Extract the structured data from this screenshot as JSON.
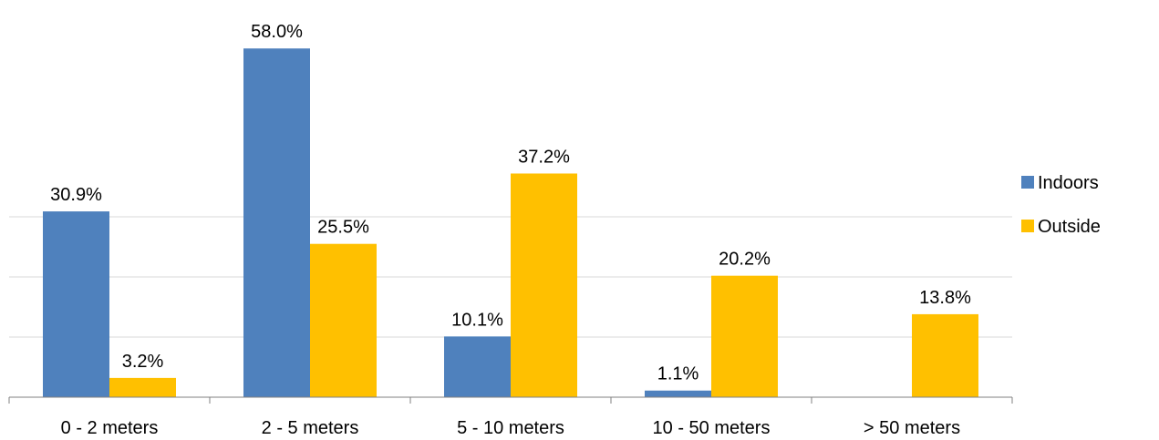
{
  "chart_data": {
    "type": "bar",
    "categories": [
      "0 - 2 meters",
      "2 - 5 meters",
      "5 - 10 meters",
      "10 - 50 meters",
      "> 50 meters"
    ],
    "series": [
      {
        "name": "Indoors",
        "color": "#4F81BD",
        "values": [
          30.9,
          58.0,
          10.1,
          1.1,
          null
        ],
        "labels": [
          "30.9%",
          "58.0%",
          "10.1%",
          "1.1%",
          ""
        ]
      },
      {
        "name": "Outside",
        "color": "#FFC000",
        "values": [
          3.2,
          25.5,
          37.2,
          20.2,
          13.8
        ],
        "labels": [
          "3.2%",
          "25.5%",
          "37.2%",
          "20.2%",
          "13.8%"
        ]
      }
    ],
    "ylim": [
      0,
      60
    ],
    "gridlines": [
      10,
      20,
      30
    ],
    "grid": true,
    "legend_position": "right",
    "title": "",
    "xlabel": "",
    "ylabel": ""
  }
}
